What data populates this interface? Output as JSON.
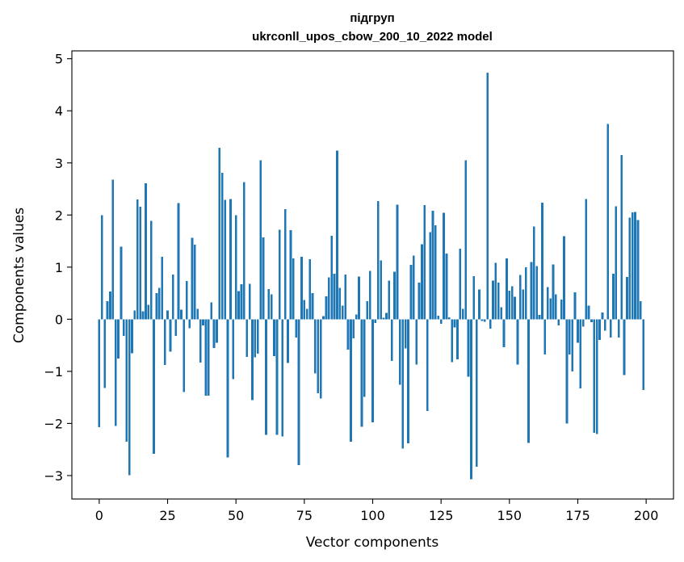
{
  "chart_data": {
    "type": "bar",
    "title_line1": "підгруп",
    "title_line2": "ukrconll_upos_cbow_200_10_2022 model",
    "xlabel": "Vector components",
    "ylabel": "Components values",
    "bar_color": "#1f77b4",
    "xlim": [
      -10,
      210
    ],
    "ylim": [
      -3.45,
      5.15
    ],
    "xticks": [
      0,
      25,
      50,
      75,
      100,
      125,
      150,
      175,
      200
    ],
    "yticks": [
      -3,
      -2,
      -1,
      0,
      1,
      2,
      3,
      4,
      5
    ],
    "ytick_labels": [
      "−3",
      "−2",
      "−1",
      "0",
      "1",
      "2",
      "3",
      "4",
      "5"
    ],
    "grid": false,
    "values": [
      -2.07,
      2.0,
      -1.32,
      0.35,
      0.53,
      2.68,
      -2.05,
      -0.75,
      1.39,
      -0.32,
      -2.35,
      -2.99,
      -0.65,
      0.17,
      2.3,
      2.16,
      0.15,
      2.61,
      0.28,
      1.89,
      -2.58,
      0.5,
      0.6,
      1.2,
      -0.88,
      0.17,
      -0.62,
      0.86,
      -0.32,
      2.23,
      0.18,
      -1.4,
      0.73,
      -0.17,
      1.56,
      1.43,
      0.2,
      -0.83,
      -0.12,
      -1.47,
      -1.47,
      0.32,
      -0.55,
      -0.45,
      3.29,
      2.81,
      2.29,
      -2.65,
      2.31,
      -1.15,
      2.0,
      0.54,
      0.67,
      2.63,
      -0.72,
      0.68,
      -1.55,
      -0.73,
      -0.66,
      3.05,
      1.57,
      -2.22,
      0.58,
      0.48,
      -0.71,
      -2.22,
      1.72,
      -2.25,
      2.11,
      -0.84,
      1.71,
      1.17,
      -0.35,
      -2.8,
      1.2,
      0.37,
      0.2,
      1.15,
      0.5,
      -1.04,
      -1.42,
      -1.52,
      0.06,
      0.44,
      0.8,
      1.6,
      0.87,
      3.24,
      0.6,
      0.26,
      0.86,
      -0.58,
      -2.35,
      -0.37,
      0.09,
      0.82,
      -2.06,
      -1.49,
      0.35,
      0.93,
      -1.98,
      -0.07,
      2.27,
      1.13,
      0.03,
      0.12,
      0.74,
      -0.8,
      0.91,
      2.2,
      -1.26,
      -2.48,
      -0.56,
      -2.38,
      1.04,
      1.22,
      -0.87,
      0.7,
      1.44,
      2.19,
      -1.76,
      1.67,
      2.08,
      1.8,
      0.07,
      -0.09,
      2.04,
      1.26,
      0.04,
      -0.82,
      -0.16,
      -0.77,
      1.35,
      0.2,
      3.05,
      -1.1,
      -3.07,
      0.83,
      -2.83,
      0.57,
      -0.03,
      -0.05,
      4.73,
      -0.18,
      0.74,
      1.08,
      0.7,
      0.23,
      -0.54,
      1.17,
      0.55,
      0.63,
      0.43,
      -0.87,
      0.85,
      0.57,
      1.0,
      -2.37,
      1.1,
      1.78,
      1.02,
      0.08,
      2.24,
      -0.68,
      0.62,
      0.4,
      1.05,
      0.48,
      -0.12,
      0.38,
      1.59,
      -2.0,
      -0.68,
      -1.0,
      0.52,
      -0.45,
      -1.33,
      -0.14,
      2.31,
      0.26,
      -0.06,
      -2.18,
      -2.2,
      -0.4,
      0.13,
      -0.22,
      3.75,
      -0.35,
      0.87,
      2.17,
      -0.35,
      3.15,
      -1.07,
      0.81,
      1.95,
      2.05,
      2.06,
      1.9,
      0.35,
      -1.36
    ]
  }
}
